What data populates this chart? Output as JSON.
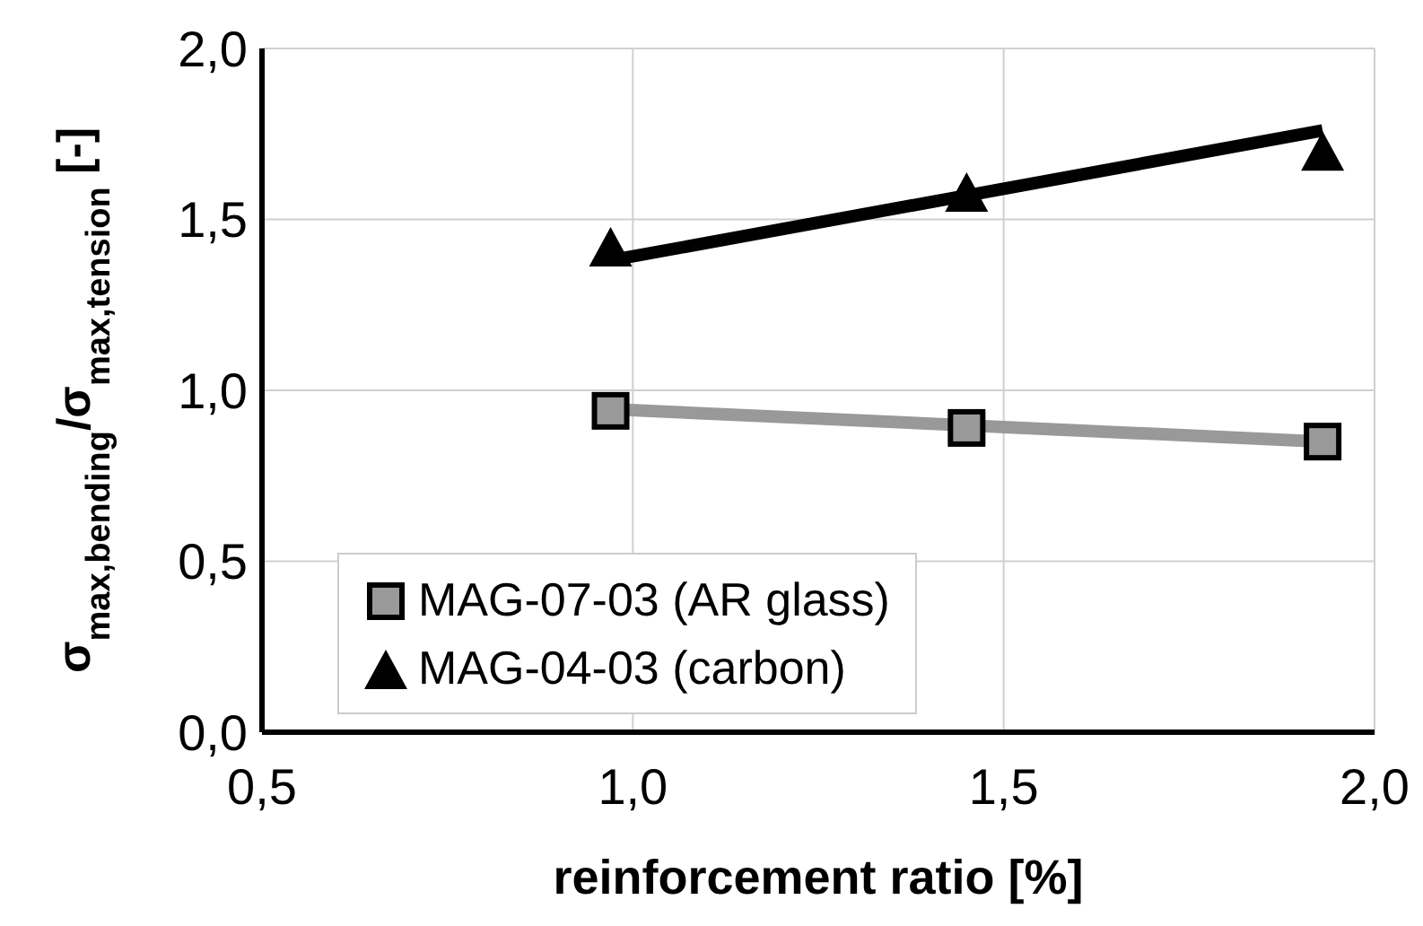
{
  "chart_data": {
    "type": "scatter",
    "xlabel": "reinforcement ratio [%]",
    "ylabel": "σ$_{max,bending}$/σ$_{max,tension}$ [-]",
    "xlim": [
      0.5,
      2.0
    ],
    "xticks": [
      {
        "value": 0.5,
        "label": "0,5"
      },
      {
        "value": 1.0,
        "label": "1,0"
      },
      {
        "value": 1.5,
        "label": "1,5"
      },
      {
        "value": 2.0,
        "label": "2,0"
      }
    ],
    "ylim": [
      0,
      2.0
    ],
    "yticks": [
      {
        "value": 0,
        "label": "0,0"
      },
      {
        "value": 0.5,
        "label": "0,5"
      },
      {
        "value": 1.0,
        "label": "1,0"
      },
      {
        "value": 1.5,
        "label": "1,5"
      },
      {
        "value": 2.0,
        "label": "2,0"
      }
    ],
    "grid": true,
    "legend": "bottom left",
    "series": [
      {
        "name": "MAG-07-03 (AR glass)",
        "color": "#999999",
        "marker": "square",
        "x": [
          0.97,
          1.45,
          1.93
        ],
        "values": [
          0.94,
          0.89,
          0.85
        ]
      },
      {
        "name": "MAG-04-03 (carbon)",
        "color": "#000000",
        "marker": "triangle",
        "x": [
          0.97,
          1.45,
          1.93
        ],
        "values": [
          1.42,
          1.58,
          1.7
        ]
      },
      {
        "type": "line",
        "color": "#999999",
        "marker": "none",
        "x": [
          0.97,
          1.93
        ],
        "values": [
          0.945,
          0.85
        ]
      },
      {
        "type": "line",
        "color": "#000000",
        "marker": "none",
        "x": [
          0.97,
          1.93
        ],
        "values": [
          1.38,
          1.76
        ]
      }
    ]
  }
}
